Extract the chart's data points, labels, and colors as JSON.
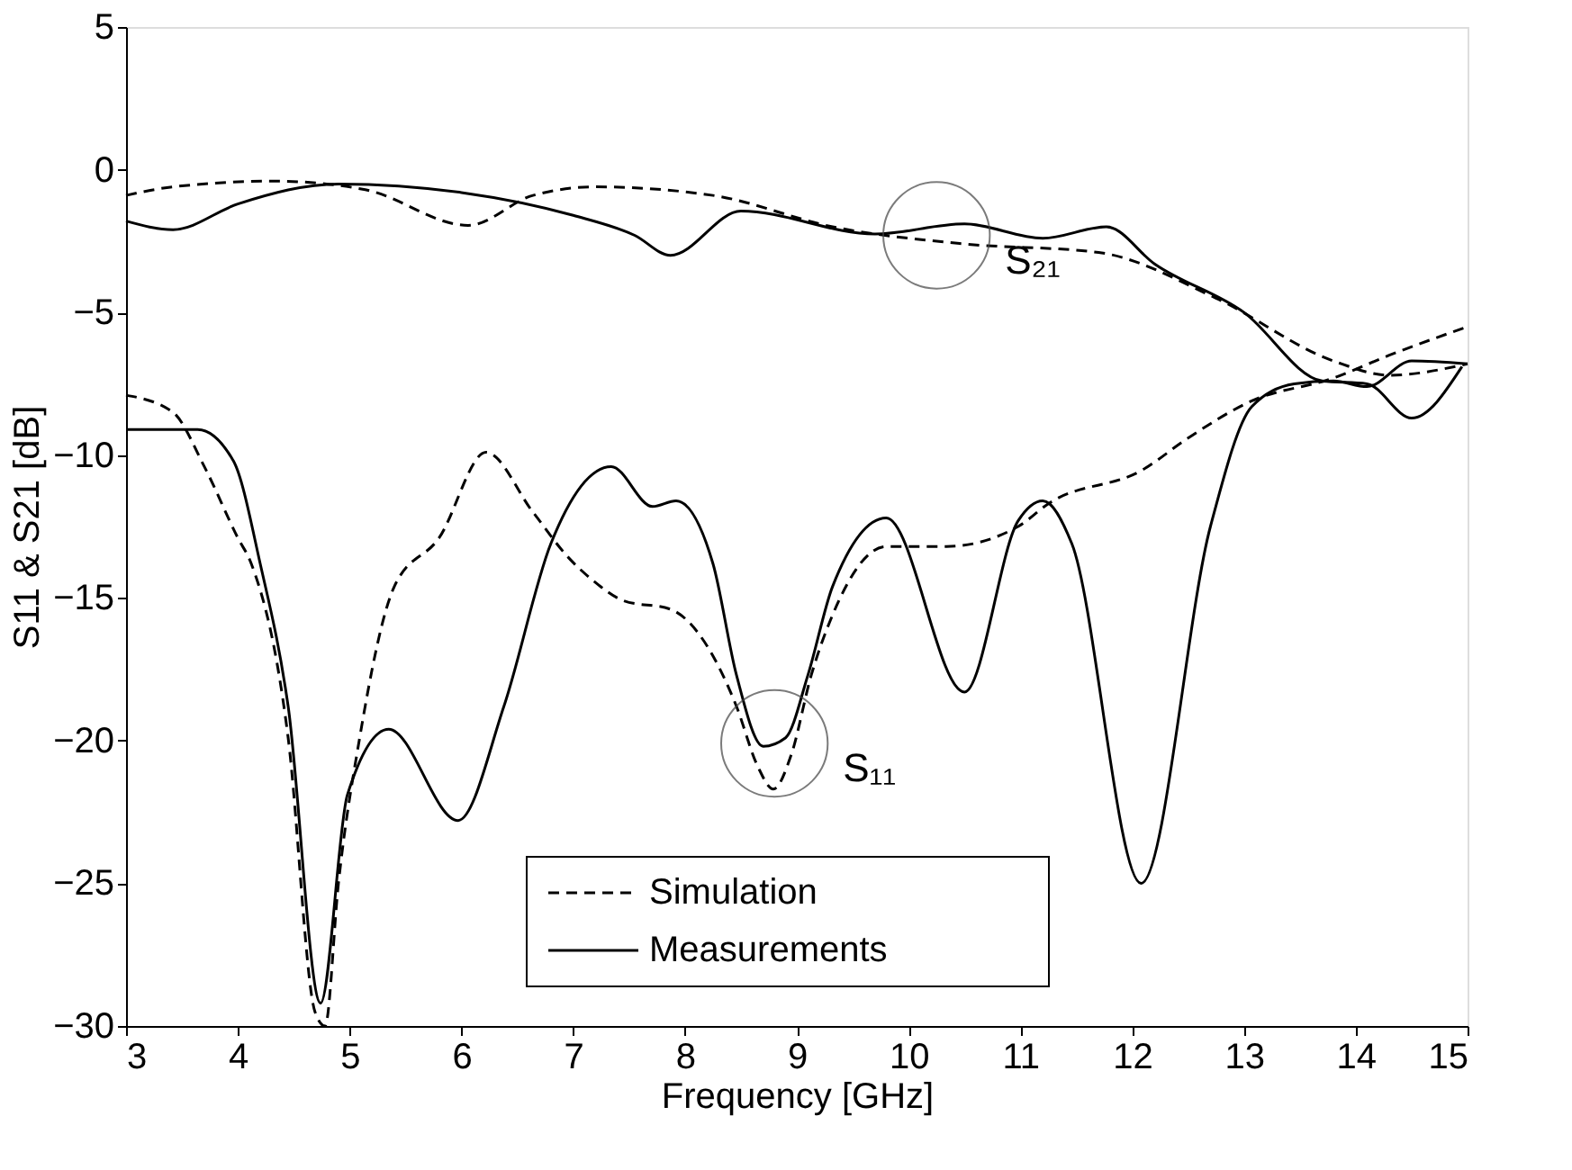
{
  "chart_data": {
    "type": "line",
    "xlabel": "Frequency [GHz]",
    "ylabel": "S11 & S21 [dB]",
    "xlim": [
      3,
      15
    ],
    "ylim": [
      -30,
      5
    ],
    "xticks": [
      3,
      4,
      5,
      6,
      7,
      8,
      9,
      10,
      11,
      12,
      13,
      14,
      15
    ],
    "yticks": [
      -30,
      -25,
      -20,
      -15,
      -10,
      -5,
      0,
      5
    ],
    "grid": false,
    "legend": "bottom",
    "marker": "none",
    "series": [
      {
        "name": "Simulation",
        "color": "#000000",
        "line_style": "dashed",
        "x": [
          3,
          3.42,
          4.33,
          5.14,
          6.06,
          6.64,
          7.2,
          8.25,
          9.32,
          10.5,
          11.7,
          12.75,
          13.8,
          14.3,
          15
        ],
        "values": [
          -0.9,
          -0.6,
          -0.4,
          -0.7,
          -1.95,
          -0.9,
          -0.6,
          -0.9,
          -2.0,
          -2.6,
          -2.9,
          -4.5,
          -6.7,
          -7.2,
          -6.8
        ]
      },
      {
        "name": "Measurements",
        "color": "#000000",
        "line_style": "solid",
        "x": [
          3,
          3.42,
          4.0,
          4.9,
          6.0,
          7.0,
          7.55,
          7.87,
          8.5,
          9.7,
          10.5,
          11.2,
          11.77,
          12.2,
          13.0,
          13.7,
          14.1,
          14.5,
          14.95
        ],
        "values": [
          -1.8,
          -2.1,
          -1.2,
          -0.5,
          -0.8,
          -1.6,
          -2.3,
          -3.0,
          -1.45,
          -2.25,
          -1.9,
          -2.4,
          -2.0,
          -3.3,
          -5.0,
          -7.4,
          -7.5,
          -8.7,
          -6.9
        ]
      },
      {
        "color": "#000000",
        "line_style": "dashed",
        "x": [
          3,
          3.42,
          3.7,
          4.0,
          4.12,
          4.45,
          4.69,
          4.78,
          4.9,
          5.09,
          5.4,
          5.8,
          6.22,
          6.64,
          6.96,
          7.18,
          7.45,
          7.87,
          8.2,
          8.46,
          8.65,
          8.79,
          8.95,
          9.13,
          9.32,
          9.8,
          10.34,
          10.98,
          11.25,
          12.1,
          12.5,
          13.07,
          13.8,
          14.3,
          15
        ],
        "values": [
          -7.9,
          -8.5,
          -10.4,
          -12.9,
          -13.8,
          -19.9,
          -29.5,
          -30,
          -25.0,
          -19.9,
          -14.6,
          -12.9,
          -9.9,
          -12.0,
          -13.6,
          -14.4,
          -15.1,
          -15.4,
          -16.7,
          -18.8,
          -20.9,
          -21.7,
          -20.5,
          -17.7,
          -15.6,
          -13.2,
          -13.2,
          -12.5,
          -11.7,
          -10.5,
          -9.4,
          -8.1,
          -7.3,
          -6.5,
          -5.5
        ]
      },
      {
        "color": "#000000",
        "line_style": "solid",
        "x": [
          3,
          3.64,
          3.96,
          4.2,
          4.45,
          4.74,
          4.98,
          5.35,
          5.97,
          6.38,
          6.8,
          7.34,
          7.71,
          7.92,
          8.25,
          8.46,
          8.7,
          8.9,
          9.1,
          9.32,
          9.8,
          10.5,
          10.98,
          11.2,
          11.46,
          12.08,
          12.7,
          13.07,
          13.45,
          13.8,
          14.1,
          14.5,
          15
        ],
        "values": [
          -9.1,
          -9.1,
          -10.2,
          -13.8,
          -18.8,
          -29.2,
          -21.9,
          -19.6,
          -22.8,
          -18.8,
          -13.1,
          -10.4,
          -11.8,
          -11.6,
          -13.8,
          -17.7,
          -20.2,
          -19.9,
          -17.7,
          -14.6,
          -12.2,
          -18.3,
          -12.3,
          -11.6,
          -13.1,
          -25.0,
          -12.5,
          -8.3,
          -7.5,
          -7.4,
          -7.6,
          -6.7,
          -6.8
        ]
      }
    ],
    "annotations": [
      {
        "text": "S₂₁",
        "x": 10.25,
        "y": -2.3
      },
      {
        "text": "S₁₁",
        "x": 8.8,
        "y": -20.1
      }
    ]
  }
}
